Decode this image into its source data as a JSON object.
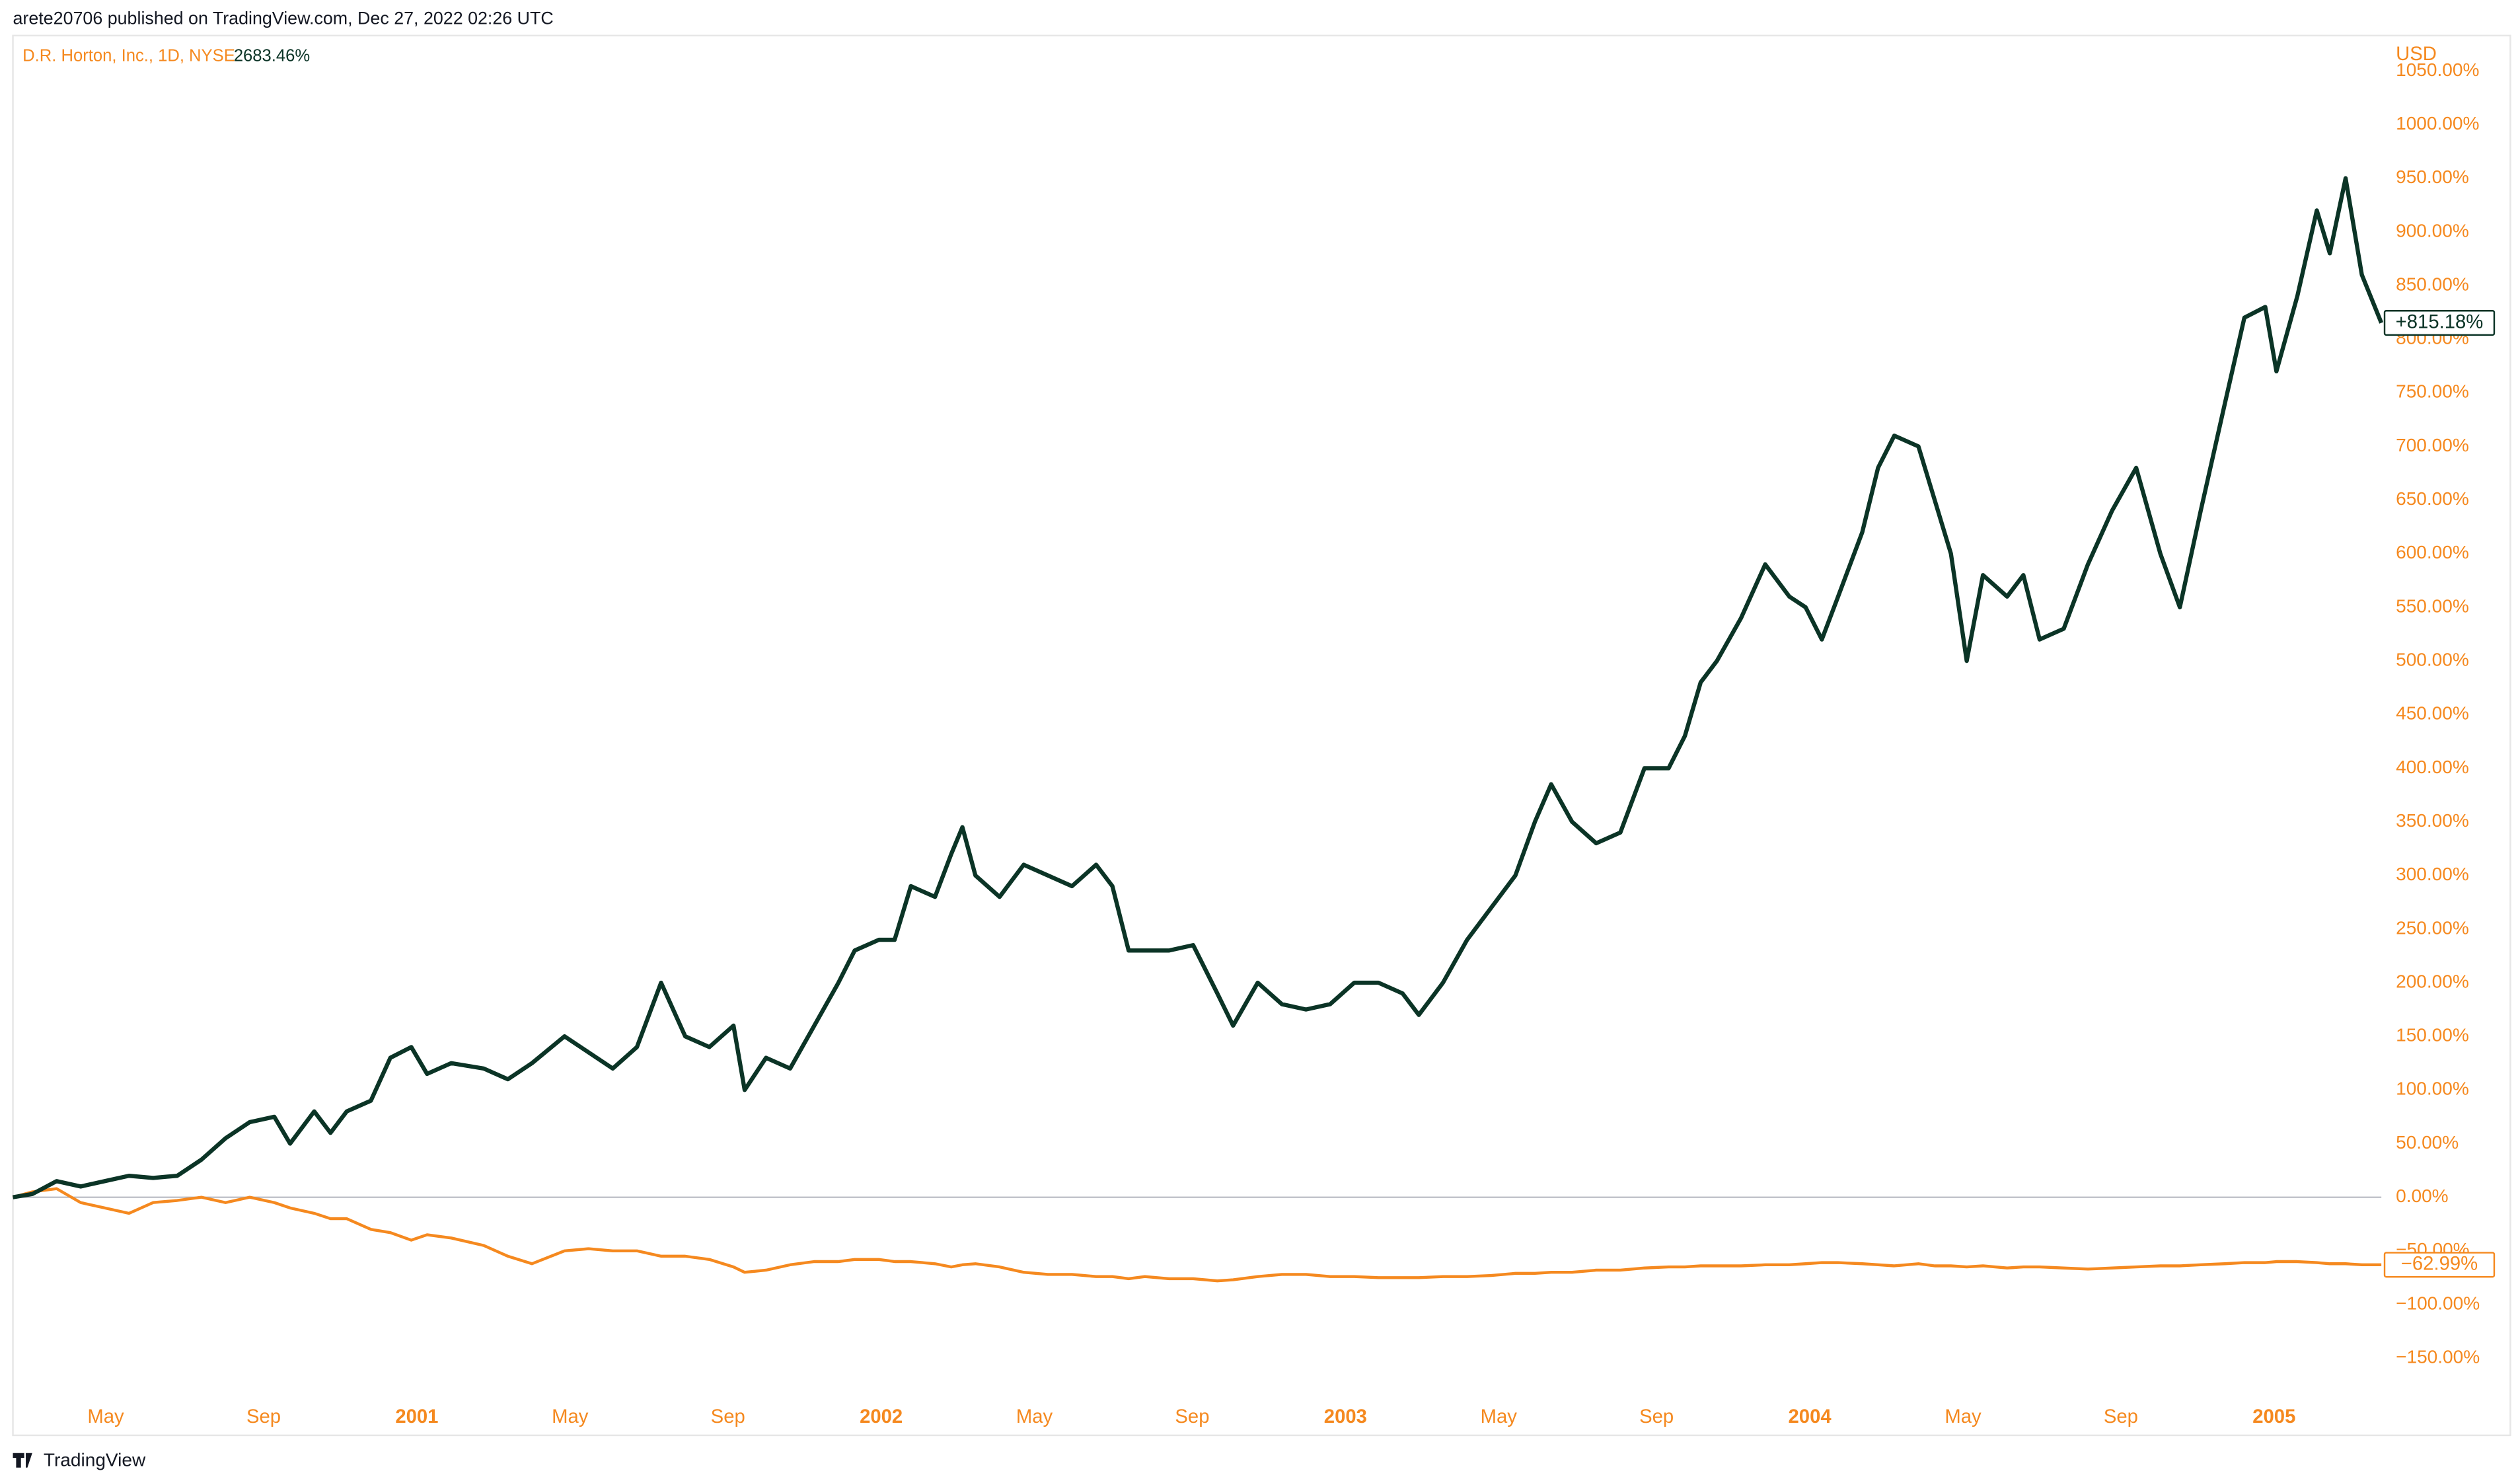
{
  "published": "arete20706 published on TradingView.com, Dec 27, 2022 02:26 UTC",
  "brand": "TradingView",
  "chart_data": {
    "type": "line",
    "legend_value": "2683.46%",
    "currency": "USD",
    "x": [
      2000.13,
      2000.172,
      2000.224,
      2000.276,
      2000.328,
      2000.38,
      2000.432,
      2000.484,
      2000.536,
      2000.588,
      2000.64,
      2000.693,
      2000.727,
      2000.779,
      2000.814,
      2000.849,
      2000.901,
      2000.943,
      2000.988,
      2001.022,
      2001.074,
      2001.144,
      2001.196,
      2001.248,
      2001.318,
      2001.37,
      2001.422,
      2001.474,
      2001.526,
      2001.578,
      2001.63,
      2001.682,
      2001.706,
      2001.752,
      2001.804,
      2001.856,
      2001.908,
      2001.943,
      2001.995,
      2002.029,
      2002.064,
      2002.116,
      2002.151,
      2002.175,
      2002.203,
      2002.255,
      2002.307,
      2002.359,
      2002.411,
      2002.463,
      2002.498,
      2002.533,
      2002.568,
      2002.62,
      2002.672,
      2002.724,
      2002.758,
      2002.811,
      2002.863,
      2002.915,
      2002.967,
      2003.019,
      2003.071,
      2003.123,
      2003.158,
      2003.21,
      2003.262,
      2003.314,
      2003.366,
      2003.408,
      2003.443,
      2003.488,
      2003.54,
      2003.592,
      2003.644,
      2003.696,
      2003.731,
      2003.765,
      2003.8,
      2003.852,
      2003.904,
      2003.956,
      2003.991,
      2004.026,
      2004.061,
      2004.113,
      2004.147,
      2004.182,
      2004.234,
      2004.269,
      2004.304,
      2004.338,
      2004.373,
      2004.425,
      2004.46,
      2004.495,
      2004.547,
      2004.599,
      2004.651,
      2004.703,
      2004.755,
      2004.797,
      2004.842,
      2004.894,
      2004.936,
      2004.981,
      2005.005,
      2005.05,
      2005.092,
      2005.12,
      2005.154,
      2005.189,
      2005.231
    ],
    "series": [
      {
        "color": "#0b3426",
        "end_label": "+815.18%",
        "values": [
          0,
          3,
          15,
          10,
          15,
          20,
          18,
          20,
          35,
          55,
          70,
          75,
          50,
          80,
          60,
          80,
          90,
          130,
          140,
          115,
          125,
          120,
          110,
          125,
          150,
          135,
          120,
          140,
          200,
          150,
          140,
          160,
          100,
          130,
          120,
          160,
          200,
          230,
          240,
          240,
          290,
          280,
          320,
          345,
          300,
          280,
          310,
          300,
          290,
          310,
          290,
          230,
          230,
          230,
          235,
          190,
          160,
          200,
          180,
          175,
          180,
          200,
          200,
          190,
          170,
          200,
          240,
          270,
          300,
          350,
          385,
          350,
          330,
          340,
          400,
          400,
          430,
          480,
          500,
          540,
          590,
          560,
          550,
          520,
          560,
          620,
          680,
          710,
          700,
          650,
          600,
          500,
          580,
          560,
          580,
          520,
          530,
          590,
          640,
          680,
          600,
          550,
          640,
          740,
          820,
          830,
          770,
          840,
          920,
          880,
          950,
          860,
          815.18
        ]
      },
      {
        "name": "D.R. Horton, Inc., 1D, NYSE",
        "color": "#f5891f",
        "end_label": "−62.99%",
        "values": [
          0,
          5,
          8,
          -5,
          -10,
          -15,
          -5,
          -3,
          0,
          -5,
          0,
          -5,
          -10,
          -15,
          -20,
          -20,
          -30,
          -33,
          -40,
          -35,
          -38,
          -45,
          -55,
          -62,
          -50,
          -48,
          -50,
          -50,
          -55,
          -55,
          -58,
          -65,
          -70,
          -68,
          -63,
          -60,
          -60,
          -58,
          -58,
          -60,
          -60,
          -62,
          -65,
          -63,
          -62,
          -65,
          -70,
          -72,
          -72,
          -74,
          -74,
          -76,
          -74,
          -76,
          -76,
          -78,
          -77,
          -74,
          -72,
          -72,
          -74,
          -74,
          -75,
          -75,
          -75,
          -74,
          -74,
          -73,
          -71,
          -71,
          -70,
          -70,
          -68,
          -68,
          -66,
          -65,
          -65,
          -64,
          -64,
          -64,
          -63,
          -63,
          -62,
          -61,
          -61,
          -62,
          -63,
          -64,
          -62,
          -64,
          -64,
          -65,
          -64,
          -66,
          -65,
          -65,
          -66,
          -67,
          -66,
          -65,
          -64,
          -64,
          -63,
          -62,
          -61,
          -61,
          -60,
          -60,
          -61,
          -62,
          -62,
          -63,
          -62.99
        ]
      }
    ],
    "xlim": [
      2000.13,
      2005.231
    ],
    "xticks": [
      {
        "value": 2000.33,
        "label": "May"
      },
      {
        "value": 2000.67,
        "label": "Sep"
      },
      2001,
      {
        "value": 2001.33,
        "label": "May"
      },
      {
        "value": 2001.67,
        "label": "Sep"
      },
      2002,
      {
        "value": 2002.33,
        "label": "May"
      },
      {
        "value": 2002.67,
        "label": "Sep"
      },
      2003,
      {
        "value": 2003.33,
        "label": "May"
      },
      {
        "value": 2003.67,
        "label": "Sep"
      },
      2004,
      {
        "value": 2004.33,
        "label": "May"
      },
      {
        "value": 2004.67,
        "label": "Sep"
      },
      2005
    ],
    "ylim": [
      -222,
      1083
    ],
    "yticks": [
      {
        "value": -150,
        "label": "−150.00%"
      },
      {
        "value": -100,
        "label": "−100.00%"
      },
      {
        "value": -50,
        "label": "−50.00%"
      },
      {
        "value": 0,
        "label": "0.00%"
      },
      {
        "value": 50,
        "label": "50.00%"
      },
      {
        "value": 100,
        "label": "100.00%"
      },
      {
        "value": 150,
        "label": "150.00%"
      },
      {
        "value": 200,
        "label": "200.00%"
      },
      {
        "value": 250,
        "label": "250.00%"
      },
      {
        "value": 300,
        "label": "300.00%"
      },
      {
        "value": 350,
        "label": "350.00%"
      },
      {
        "value": 400,
        "label": "400.00%"
      },
      {
        "value": 450,
        "label": "450.00%"
      },
      {
        "value": 500,
        "label": "500.00%"
      },
      {
        "value": 550,
        "label": "550.00%"
      },
      {
        "value": 600,
        "label": "600.00%"
      },
      {
        "value": 650,
        "label": "650.00%"
      },
      {
        "value": 700,
        "label": "700.00%"
      },
      {
        "value": 750,
        "label": "750.00%"
      },
      {
        "value": 800,
        "label": "800.00%"
      },
      {
        "value": 850,
        "label": "850.00%"
      },
      {
        "value": 900,
        "label": "900.00%"
      },
      {
        "value": 950,
        "label": "950.00%"
      },
      {
        "value": 1000,
        "label": "1000.00%"
      },
      {
        "value": 1050,
        "label": "1050.00%"
      }
    ],
    "axis_color": "#f5891f"
  }
}
